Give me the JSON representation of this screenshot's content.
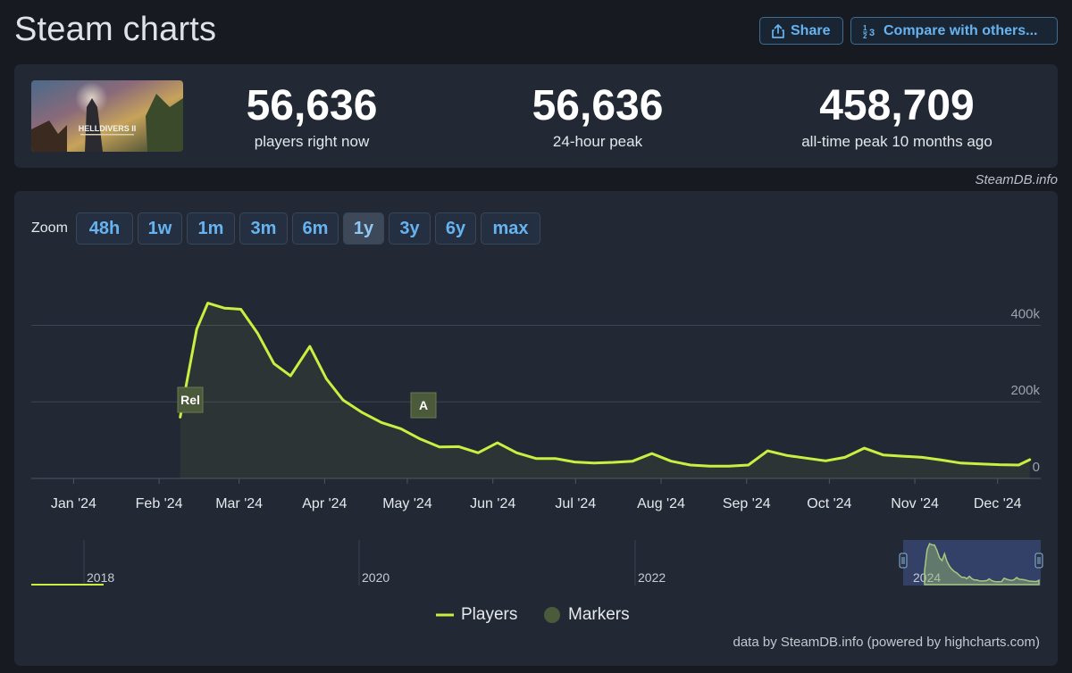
{
  "header": {
    "title": "Steam charts",
    "share_label": "Share",
    "compare_label": "Compare with others...",
    "share_icon": "share-icon",
    "compare_icon": "fraction-icon"
  },
  "stats": {
    "game_cover_icon": "game-cover-image",
    "game_cover_text": "HELLDIVERS II",
    "current_value": "56,636",
    "current_label": "players right now",
    "peak24_value": "56,636",
    "peak24_label": "24-hour peak",
    "alltime_value": "458,709",
    "alltime_label": "all-time peak 10 months ago"
  },
  "credit_top": "SteamDB.info",
  "zoom": {
    "label": "Zoom",
    "options": [
      "48h",
      "1w",
      "1m",
      "3m",
      "6m",
      "1y",
      "3y",
      "6y",
      "max"
    ],
    "selected": "1y"
  },
  "colors": {
    "line": "#c8f040",
    "accent": "#67b3f0",
    "marker": "#4b5a3a",
    "panel": "#222935"
  },
  "chart_data": {
    "type": "line",
    "title": "",
    "xlabel": "",
    "ylabel": "",
    "ylim": [
      0,
      600000
    ],
    "y_ticks": [
      "0",
      "200k",
      "400k"
    ],
    "x_ticks": [
      "Jan '24",
      "Feb '24",
      "Mar '24",
      "Apr '24",
      "May '24",
      "Jun '24",
      "Jul '24",
      "Aug '24",
      "Sep '24",
      "Oct '24",
      "Nov '24",
      "Dec '24"
    ],
    "grid": true,
    "legend_position": "bottom-center",
    "series": [
      {
        "name": "Players",
        "color": "#c8f040",
        "x": [
          "2024-02-08",
          "2024-02-14",
          "2024-02-18",
          "2024-02-24",
          "2024-03-01",
          "2024-03-07",
          "2024-03-13",
          "2024-03-19",
          "2024-03-26",
          "2024-04-01",
          "2024-04-07",
          "2024-04-14",
          "2024-04-21",
          "2024-04-28",
          "2024-05-05",
          "2024-05-12",
          "2024-05-19",
          "2024-05-26",
          "2024-06-02",
          "2024-06-09",
          "2024-06-16",
          "2024-06-23",
          "2024-06-30",
          "2024-07-07",
          "2024-07-14",
          "2024-07-21",
          "2024-07-28",
          "2024-08-04",
          "2024-08-11",
          "2024-08-18",
          "2024-08-25",
          "2024-09-01",
          "2024-09-08",
          "2024-09-15",
          "2024-09-22",
          "2024-09-29",
          "2024-10-06",
          "2024-10-13",
          "2024-10-20",
          "2024-10-27",
          "2024-11-03",
          "2024-11-10",
          "2024-11-17",
          "2024-11-24",
          "2024-12-01",
          "2024-12-08",
          "2024-12-12"
        ],
        "values": [
          160000,
          390000,
          458000,
          445000,
          442000,
          380000,
          300000,
          268000,
          345000,
          260000,
          205000,
          172000,
          146000,
          130000,
          103000,
          82000,
          83000,
          67000,
          93000,
          67000,
          52000,
          52000,
          43000,
          40000,
          42000,
          45000,
          65000,
          45000,
          35000,
          32000,
          32000,
          35000,
          72000,
          60000,
          53000,
          46000,
          55000,
          79000,
          61000,
          58000,
          55000,
          48000,
          40000,
          38000,
          36000,
          35000,
          49000
        ]
      }
    ],
    "markers": [
      {
        "label": "Rel",
        "date": "2024-02-08"
      },
      {
        "label": "A",
        "date": "2024-05-02"
      }
    ],
    "navigator": {
      "year_labels": [
        "2018",
        "2020",
        "2022",
        "2024"
      ]
    }
  },
  "legend": {
    "players_label": "Players",
    "markers_label": "Markers"
  },
  "credit_bottom": "data by SteamDB.info (powered by highcharts.com)"
}
